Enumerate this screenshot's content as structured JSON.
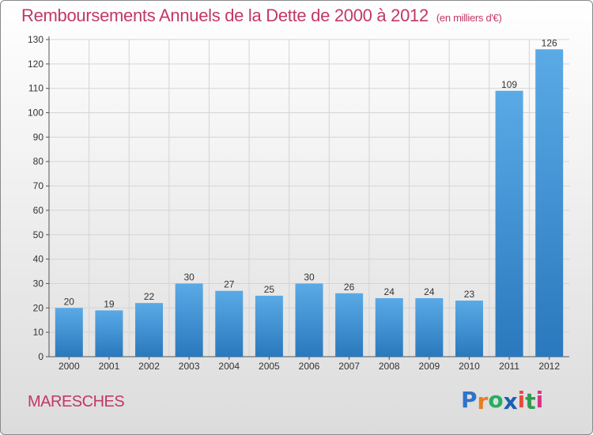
{
  "header": {
    "title": "Remboursements Annuels de la Dette de 2000 à 2012",
    "unit": "(en milliers d'€)"
  },
  "footer": {
    "city": "MARESCHES",
    "logo_letters": [
      "P",
      "r",
      "o",
      "x",
      "i",
      "t",
      "i"
    ]
  },
  "colors": {
    "accent": "#c2376a",
    "bar_light": "#5aaae6",
    "bar_dark": "#2a78bd",
    "logo": [
      "#2e74c9",
      "#e67e22",
      "#27ae60",
      "#1a5fb4",
      "#e74c3c",
      "#2e9c4f",
      "#d63384"
    ]
  },
  "chart_data": {
    "type": "bar",
    "title": "Remboursements Annuels de la Dette de 2000 à 2012",
    "subtitle": "(en milliers d'€)",
    "xlabel": "",
    "ylabel": "",
    "categories": [
      "2000",
      "2001",
      "2002",
      "2003",
      "2004",
      "2005",
      "2006",
      "2007",
      "2008",
      "2009",
      "2010",
      "2011",
      "2012"
    ],
    "values": [
      20,
      19,
      22,
      30,
      27,
      25,
      30,
      26,
      24,
      24,
      23,
      109,
      126
    ],
    "ylim": [
      0,
      130
    ],
    "yticks": [
      0,
      10,
      20,
      30,
      40,
      50,
      60,
      70,
      80,
      90,
      100,
      110,
      120,
      130
    ],
    "grid": true,
    "legend": "none"
  }
}
